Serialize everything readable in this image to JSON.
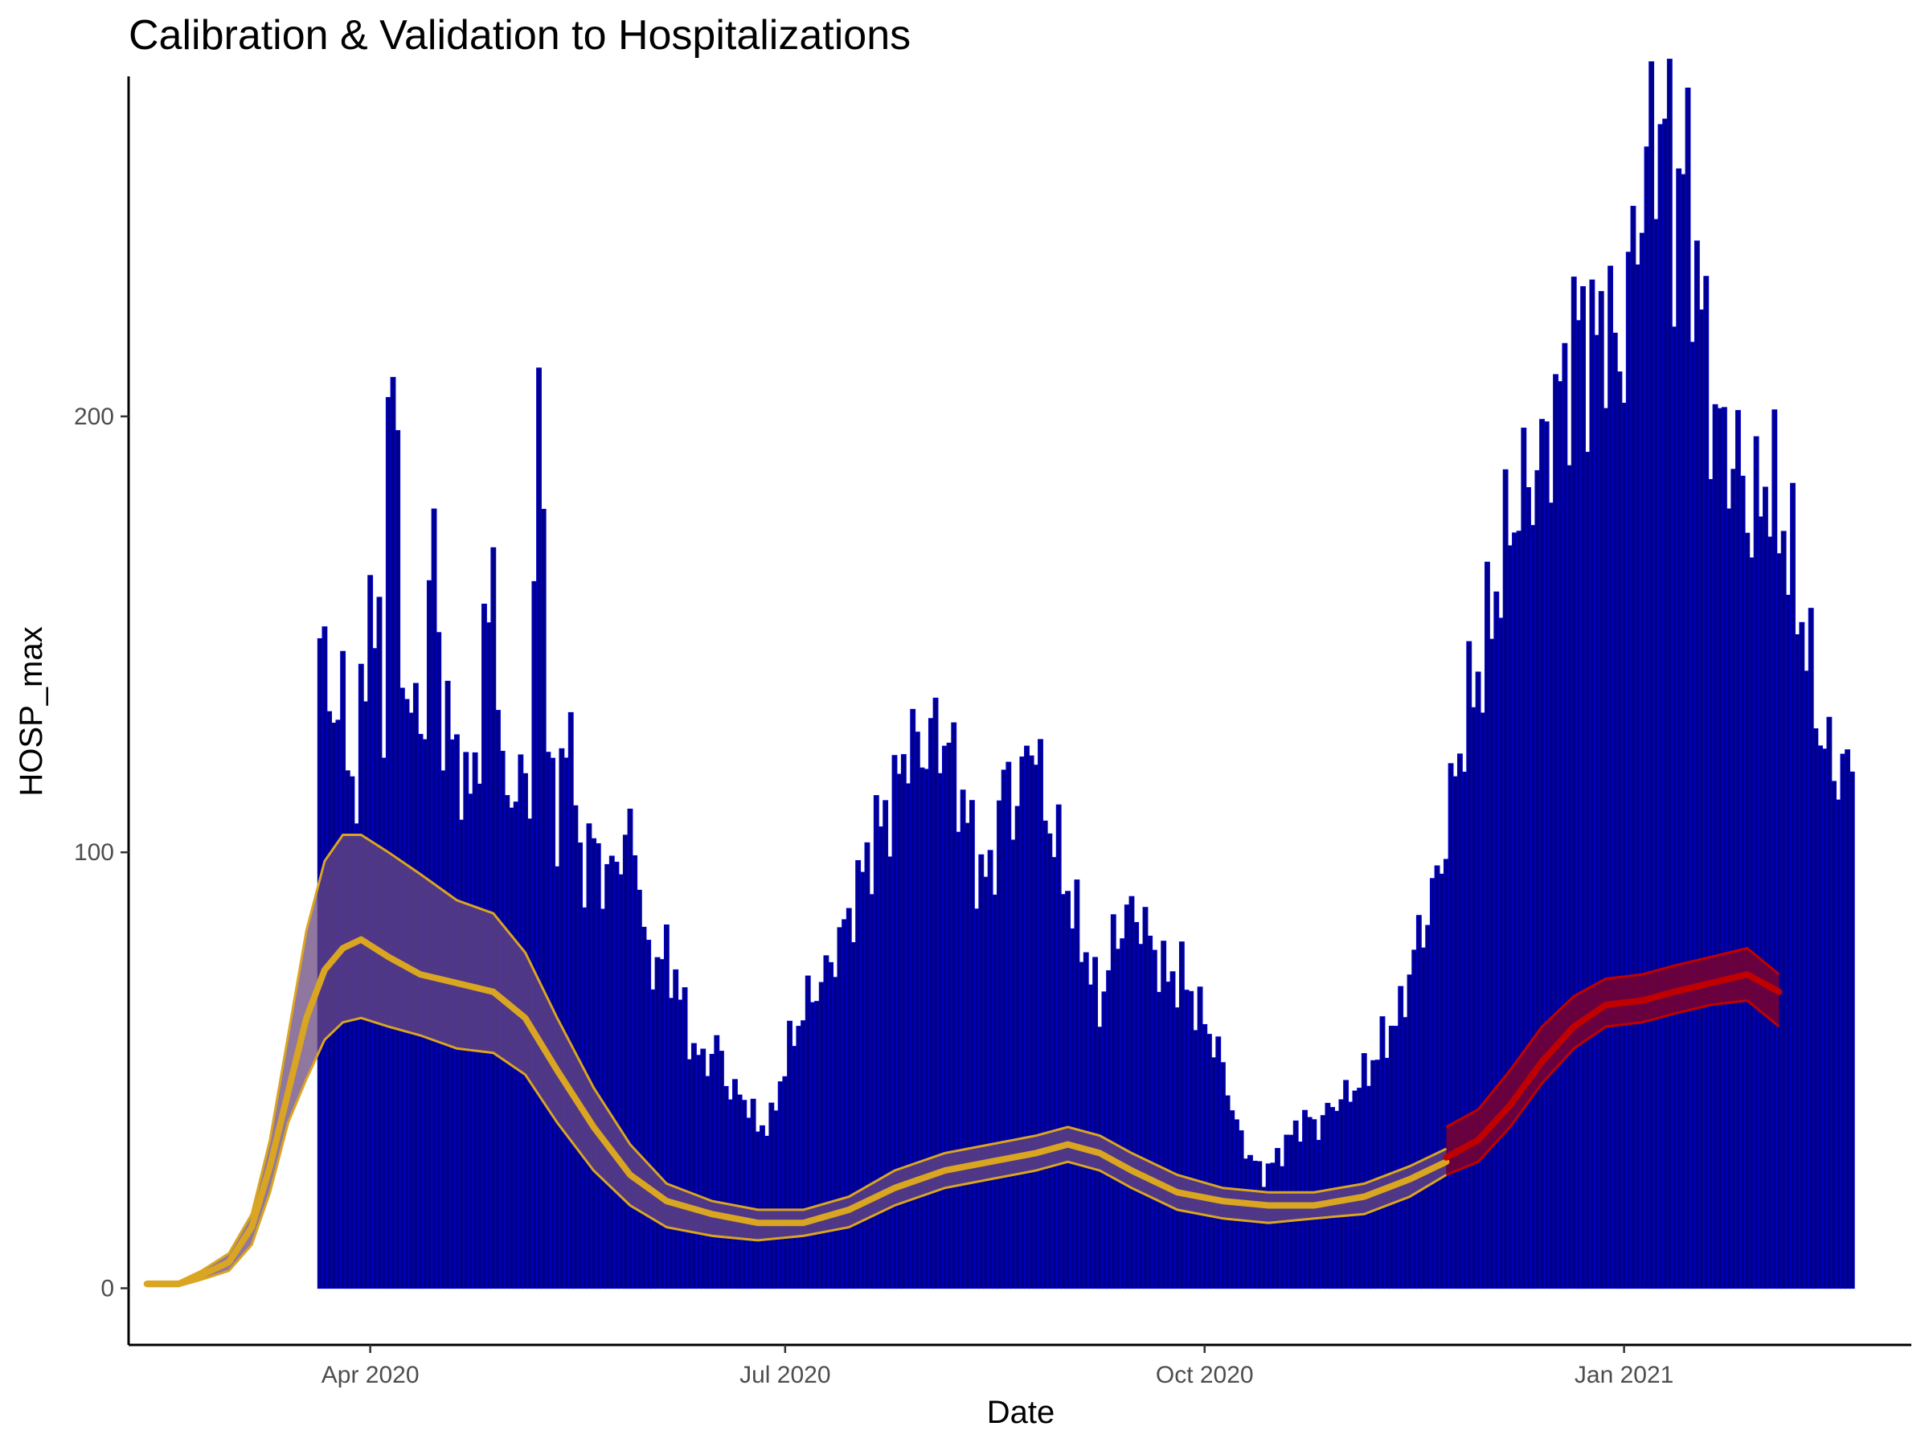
{
  "chart_data": {
    "type": "bar+line",
    "title": "Calibration & Validation to Hospitalizations",
    "xlabel": "Date",
    "ylabel": "HOSP_max",
    "x_ticks": [
      "Apr 2020",
      "Jul 2020",
      "Oct 2020",
      "Jan 2021"
    ],
    "x_tick_dates": [
      "2020-04-01",
      "2020-07-01",
      "2020-10-01",
      "2021-01-01"
    ],
    "y_ticks": [
      0,
      100,
      200
    ],
    "xlim": [
      "2020-02-08",
      "2021-03-05"
    ],
    "ylim": [
      -13,
      278
    ],
    "grid": false,
    "colors": {
      "bars": "#00008B",
      "bar_outline": "#0000CD",
      "calibration": "#DAA520",
      "validation": "#C00000",
      "ribbon_calibration": "#6A4A80",
      "ribbon_validation": "#8B0020"
    },
    "bars": {
      "name": "HOSP_max",
      "start_date": "2020-03-21",
      "anchor_values": [
        [
          "2020-03-21",
          149
        ],
        [
          "2020-03-23",
          135
        ],
        [
          "2020-03-26",
          133
        ],
        [
          "2020-03-29",
          111
        ],
        [
          "2020-04-01",
          163
        ],
        [
          "2020-04-04",
          132
        ],
        [
          "2020-04-05",
          205
        ],
        [
          "2020-04-06",
          213
        ],
        [
          "2020-04-08",
          147
        ],
        [
          "2020-04-10",
          130
        ],
        [
          "2020-04-13",
          133
        ],
        [
          "2020-04-15",
          175
        ],
        [
          "2020-04-17",
          129
        ],
        [
          "2020-04-20",
          126
        ],
        [
          "2020-04-22",
          111
        ],
        [
          "2020-04-25",
          127
        ],
        [
          "2020-04-28",
          171
        ],
        [
          "2020-04-30",
          113
        ],
        [
          "2020-05-03",
          115
        ],
        [
          "2020-05-06",
          116
        ],
        [
          "2020-05-08",
          205
        ],
        [
          "2020-05-10",
          137
        ],
        [
          "2020-05-12",
          96
        ],
        [
          "2020-05-14",
          138
        ],
        [
          "2020-05-17",
          97
        ],
        [
          "2020-05-20",
          102
        ],
        [
          "2020-05-23",
          93
        ],
        [
          "2020-05-26",
          101
        ],
        [
          "2020-05-29",
          104
        ],
        [
          "2020-06-01",
          73
        ],
        [
          "2020-06-04",
          77
        ],
        [
          "2020-06-07",
          72
        ],
        [
          "2020-06-10",
          58
        ],
        [
          "2020-06-13",
          51
        ],
        [
          "2020-06-16",
          56
        ],
        [
          "2020-06-19",
          45
        ],
        [
          "2020-06-22",
          44
        ],
        [
          "2020-06-25",
          37
        ],
        [
          "2020-06-28",
          38
        ],
        [
          "2020-07-01",
          52
        ],
        [
          "2020-07-05",
          64
        ],
        [
          "2020-07-10",
          72
        ],
        [
          "2020-07-15",
          85
        ],
        [
          "2020-07-20",
          102
        ],
        [
          "2020-07-25",
          113
        ],
        [
          "2020-07-28",
          126
        ],
        [
          "2020-07-31",
          123
        ],
        [
          "2020-08-03",
          128
        ],
        [
          "2020-08-06",
          124
        ],
        [
          "2020-08-09",
          112
        ],
        [
          "2020-08-12",
          98
        ],
        [
          "2020-08-15",
          93
        ],
        [
          "2020-08-18",
          117
        ],
        [
          "2020-08-21",
          110
        ],
        [
          "2020-08-24",
          129
        ],
        [
          "2020-08-27",
          110
        ],
        [
          "2020-08-30",
          100
        ],
        [
          "2020-09-02",
          87
        ],
        [
          "2020-09-05",
          77
        ],
        [
          "2020-09-08",
          64
        ],
        [
          "2020-09-11",
          79
        ],
        [
          "2020-09-14",
          86
        ],
        [
          "2020-09-17",
          85
        ],
        [
          "2020-09-20",
          77
        ],
        [
          "2020-09-23",
          71
        ],
        [
          "2020-09-26",
          72
        ],
        [
          "2020-09-29",
          65
        ],
        [
          "2020-10-02",
          59
        ],
        [
          "2020-10-05",
          51
        ],
        [
          "2020-10-08",
          37
        ],
        [
          "2020-10-11",
          30
        ],
        [
          "2020-10-14",
          26
        ],
        [
          "2020-10-17",
          30
        ],
        [
          "2020-10-20",
          35
        ],
        [
          "2020-10-23",
          39
        ],
        [
          "2020-10-26",
          37
        ],
        [
          "2020-10-29",
          42
        ],
        [
          "2020-11-01",
          44
        ],
        [
          "2020-11-04",
          47
        ],
        [
          "2020-11-07",
          52
        ],
        [
          "2020-11-10",
          58
        ],
        [
          "2020-11-13",
          63
        ],
        [
          "2020-11-16",
          77
        ],
        [
          "2020-11-19",
          86
        ],
        [
          "2020-11-22",
          98
        ],
        [
          "2020-11-25",
          118
        ],
        [
          "2020-11-28",
          134
        ],
        [
          "2020-12-01",
          144
        ],
        [
          "2020-12-04",
          160
        ],
        [
          "2020-12-07",
          175
        ],
        [
          "2020-12-10",
          183
        ],
        [
          "2020-12-13",
          187
        ],
        [
          "2020-12-16",
          198
        ],
        [
          "2020-12-19",
          208
        ],
        [
          "2020-12-22",
          222
        ],
        [
          "2020-12-25",
          215
        ],
        [
          "2020-12-28",
          225
        ],
        [
          "2020-12-31",
          210
        ],
        [
          "2021-01-03",
          237
        ],
        [
          "2021-01-06",
          258
        ],
        [
          "2021-01-08",
          265
        ],
        [
          "2021-01-10",
          270
        ],
        [
          "2021-01-12",
          245
        ],
        [
          "2021-01-14",
          259
        ],
        [
          "2021-01-17",
          235
        ],
        [
          "2021-01-20",
          205
        ],
        [
          "2021-01-23",
          193
        ],
        [
          "2021-01-26",
          190
        ],
        [
          "2021-01-29",
          175
        ],
        [
          "2021-02-01",
          186
        ],
        [
          "2021-02-04",
          178
        ],
        [
          "2021-02-07",
          165
        ],
        [
          "2021-02-10",
          148
        ],
        [
          "2021-02-13",
          128
        ],
        [
          "2021-02-16",
          119
        ],
        [
          "2021-02-19",
          119
        ],
        [
          "2021-02-20",
          118
        ]
      ]
    },
    "calibration": {
      "name": "calibration",
      "median": [
        [
          "2020-02-12",
          1
        ],
        [
          "2020-02-19",
          1
        ],
        [
          "2020-02-24",
          3
        ],
        [
          "2020-03-01",
          6
        ],
        [
          "2020-03-06",
          14
        ],
        [
          "2020-03-10",
          28
        ],
        [
          "2020-03-14",
          45
        ],
        [
          "2020-03-18",
          62
        ],
        [
          "2020-03-22",
          73
        ],
        [
          "2020-03-26",
          78
        ],
        [
          "2020-03-30",
          80
        ],
        [
          "2020-04-05",
          76
        ],
        [
          "2020-04-12",
          72
        ],
        [
          "2020-04-20",
          70
        ],
        [
          "2020-04-28",
          68
        ],
        [
          "2020-05-05",
          62
        ],
        [
          "2020-05-12",
          50
        ],
        [
          "2020-05-20",
          37
        ],
        [
          "2020-05-28",
          26
        ],
        [
          "2020-06-05",
          20
        ],
        [
          "2020-06-15",
          17
        ],
        [
          "2020-06-25",
          15
        ],
        [
          "2020-07-05",
          15
        ],
        [
          "2020-07-15",
          18
        ],
        [
          "2020-07-25",
          23
        ],
        [
          "2020-08-05",
          27
        ],
        [
          "2020-08-15",
          29
        ],
        [
          "2020-08-25",
          31
        ],
        [
          "2020-09-01",
          33
        ],
        [
          "2020-09-08",
          31
        ],
        [
          "2020-09-15",
          27
        ],
        [
          "2020-09-25",
          22
        ],
        [
          "2020-10-05",
          20
        ],
        [
          "2020-10-15",
          19
        ],
        [
          "2020-10-25",
          19
        ],
        [
          "2020-11-05",
          21
        ],
        [
          "2020-11-15",
          25
        ],
        [
          "2020-11-23",
          29
        ]
      ],
      "lower": [
        [
          "2020-02-12",
          0.5
        ],
        [
          "2020-02-19",
          0.5
        ],
        [
          "2020-02-24",
          2
        ],
        [
          "2020-03-01",
          4
        ],
        [
          "2020-03-06",
          10
        ],
        [
          "2020-03-10",
          22
        ],
        [
          "2020-03-14",
          38
        ],
        [
          "2020-03-18",
          48
        ],
        [
          "2020-03-22",
          57
        ],
        [
          "2020-03-26",
          61
        ],
        [
          "2020-03-30",
          62
        ],
        [
          "2020-04-05",
          60
        ],
        [
          "2020-04-12",
          58
        ],
        [
          "2020-04-20",
          55
        ],
        [
          "2020-04-28",
          54
        ],
        [
          "2020-05-05",
          49
        ],
        [
          "2020-05-12",
          38
        ],
        [
          "2020-05-20",
          27
        ],
        [
          "2020-05-28",
          19
        ],
        [
          "2020-06-05",
          14
        ],
        [
          "2020-06-15",
          12
        ],
        [
          "2020-06-25",
          11
        ],
        [
          "2020-07-05",
          12
        ],
        [
          "2020-07-15",
          14
        ],
        [
          "2020-07-25",
          19
        ],
        [
          "2020-08-05",
          23
        ],
        [
          "2020-08-15",
          25
        ],
        [
          "2020-08-25",
          27
        ],
        [
          "2020-09-01",
          29
        ],
        [
          "2020-09-08",
          27
        ],
        [
          "2020-09-15",
          23
        ],
        [
          "2020-09-25",
          18
        ],
        [
          "2020-10-05",
          16
        ],
        [
          "2020-10-15",
          15
        ],
        [
          "2020-10-25",
          16
        ],
        [
          "2020-11-05",
          17
        ],
        [
          "2020-11-15",
          21
        ],
        [
          "2020-11-23",
          26
        ]
      ],
      "upper": [
        [
          "2020-02-12",
          1.5
        ],
        [
          "2020-02-19",
          1.5
        ],
        [
          "2020-02-24",
          4
        ],
        [
          "2020-03-01",
          8
        ],
        [
          "2020-03-06",
          17
        ],
        [
          "2020-03-10",
          34
        ],
        [
          "2020-03-14",
          58
        ],
        [
          "2020-03-18",
          82
        ],
        [
          "2020-03-22",
          98
        ],
        [
          "2020-03-26",
          104
        ],
        [
          "2020-03-30",
          104
        ],
        [
          "2020-04-05",
          100
        ],
        [
          "2020-04-12",
          95
        ],
        [
          "2020-04-20",
          89
        ],
        [
          "2020-04-28",
          86
        ],
        [
          "2020-05-05",
          77
        ],
        [
          "2020-05-12",
          62
        ],
        [
          "2020-05-20",
          46
        ],
        [
          "2020-05-28",
          33
        ],
        [
          "2020-06-05",
          24
        ],
        [
          "2020-06-15",
          20
        ],
        [
          "2020-06-25",
          18
        ],
        [
          "2020-07-05",
          18
        ],
        [
          "2020-07-15",
          21
        ],
        [
          "2020-07-25",
          27
        ],
        [
          "2020-08-05",
          31
        ],
        [
          "2020-08-15",
          33
        ],
        [
          "2020-08-25",
          35
        ],
        [
          "2020-09-01",
          37
        ],
        [
          "2020-09-08",
          35
        ],
        [
          "2020-09-15",
          31
        ],
        [
          "2020-09-25",
          26
        ],
        [
          "2020-10-05",
          23
        ],
        [
          "2020-10-15",
          22
        ],
        [
          "2020-10-25",
          22
        ],
        [
          "2020-11-05",
          24
        ],
        [
          "2020-11-15",
          28
        ],
        [
          "2020-11-23",
          32
        ]
      ]
    },
    "validation": {
      "name": "validation",
      "median": [
        [
          "2020-11-23",
          30
        ],
        [
          "2020-11-30",
          34
        ],
        [
          "2020-12-07",
          42
        ],
        [
          "2020-12-14",
          52
        ],
        [
          "2020-12-21",
          60
        ],
        [
          "2020-12-28",
          65
        ],
        [
          "2021-01-05",
          66
        ],
        [
          "2021-01-12",
          68
        ],
        [
          "2021-01-20",
          70
        ],
        [
          "2021-01-28",
          72
        ],
        [
          "2021-02-04",
          68
        ]
      ],
      "lower": [
        [
          "2020-11-23",
          26
        ],
        [
          "2020-11-30",
          29
        ],
        [
          "2020-12-07",
          37
        ],
        [
          "2020-12-14",
          47
        ],
        [
          "2020-12-21",
          55
        ],
        [
          "2020-12-28",
          60
        ],
        [
          "2021-01-05",
          61
        ],
        [
          "2021-01-12",
          63
        ],
        [
          "2021-01-20",
          65
        ],
        [
          "2021-01-28",
          66
        ],
        [
          "2021-02-04",
          60
        ]
      ],
      "upper": [
        [
          "2020-11-23",
          37
        ],
        [
          "2020-11-30",
          41
        ],
        [
          "2020-12-07",
          50
        ],
        [
          "2020-12-14",
          60
        ],
        [
          "2020-12-21",
          67
        ],
        [
          "2020-12-28",
          71
        ],
        [
          "2021-01-05",
          72
        ],
        [
          "2021-01-12",
          74
        ],
        [
          "2021-01-20",
          76
        ],
        [
          "2021-01-28",
          78
        ],
        [
          "2021-02-04",
          72
        ]
      ]
    }
  }
}
